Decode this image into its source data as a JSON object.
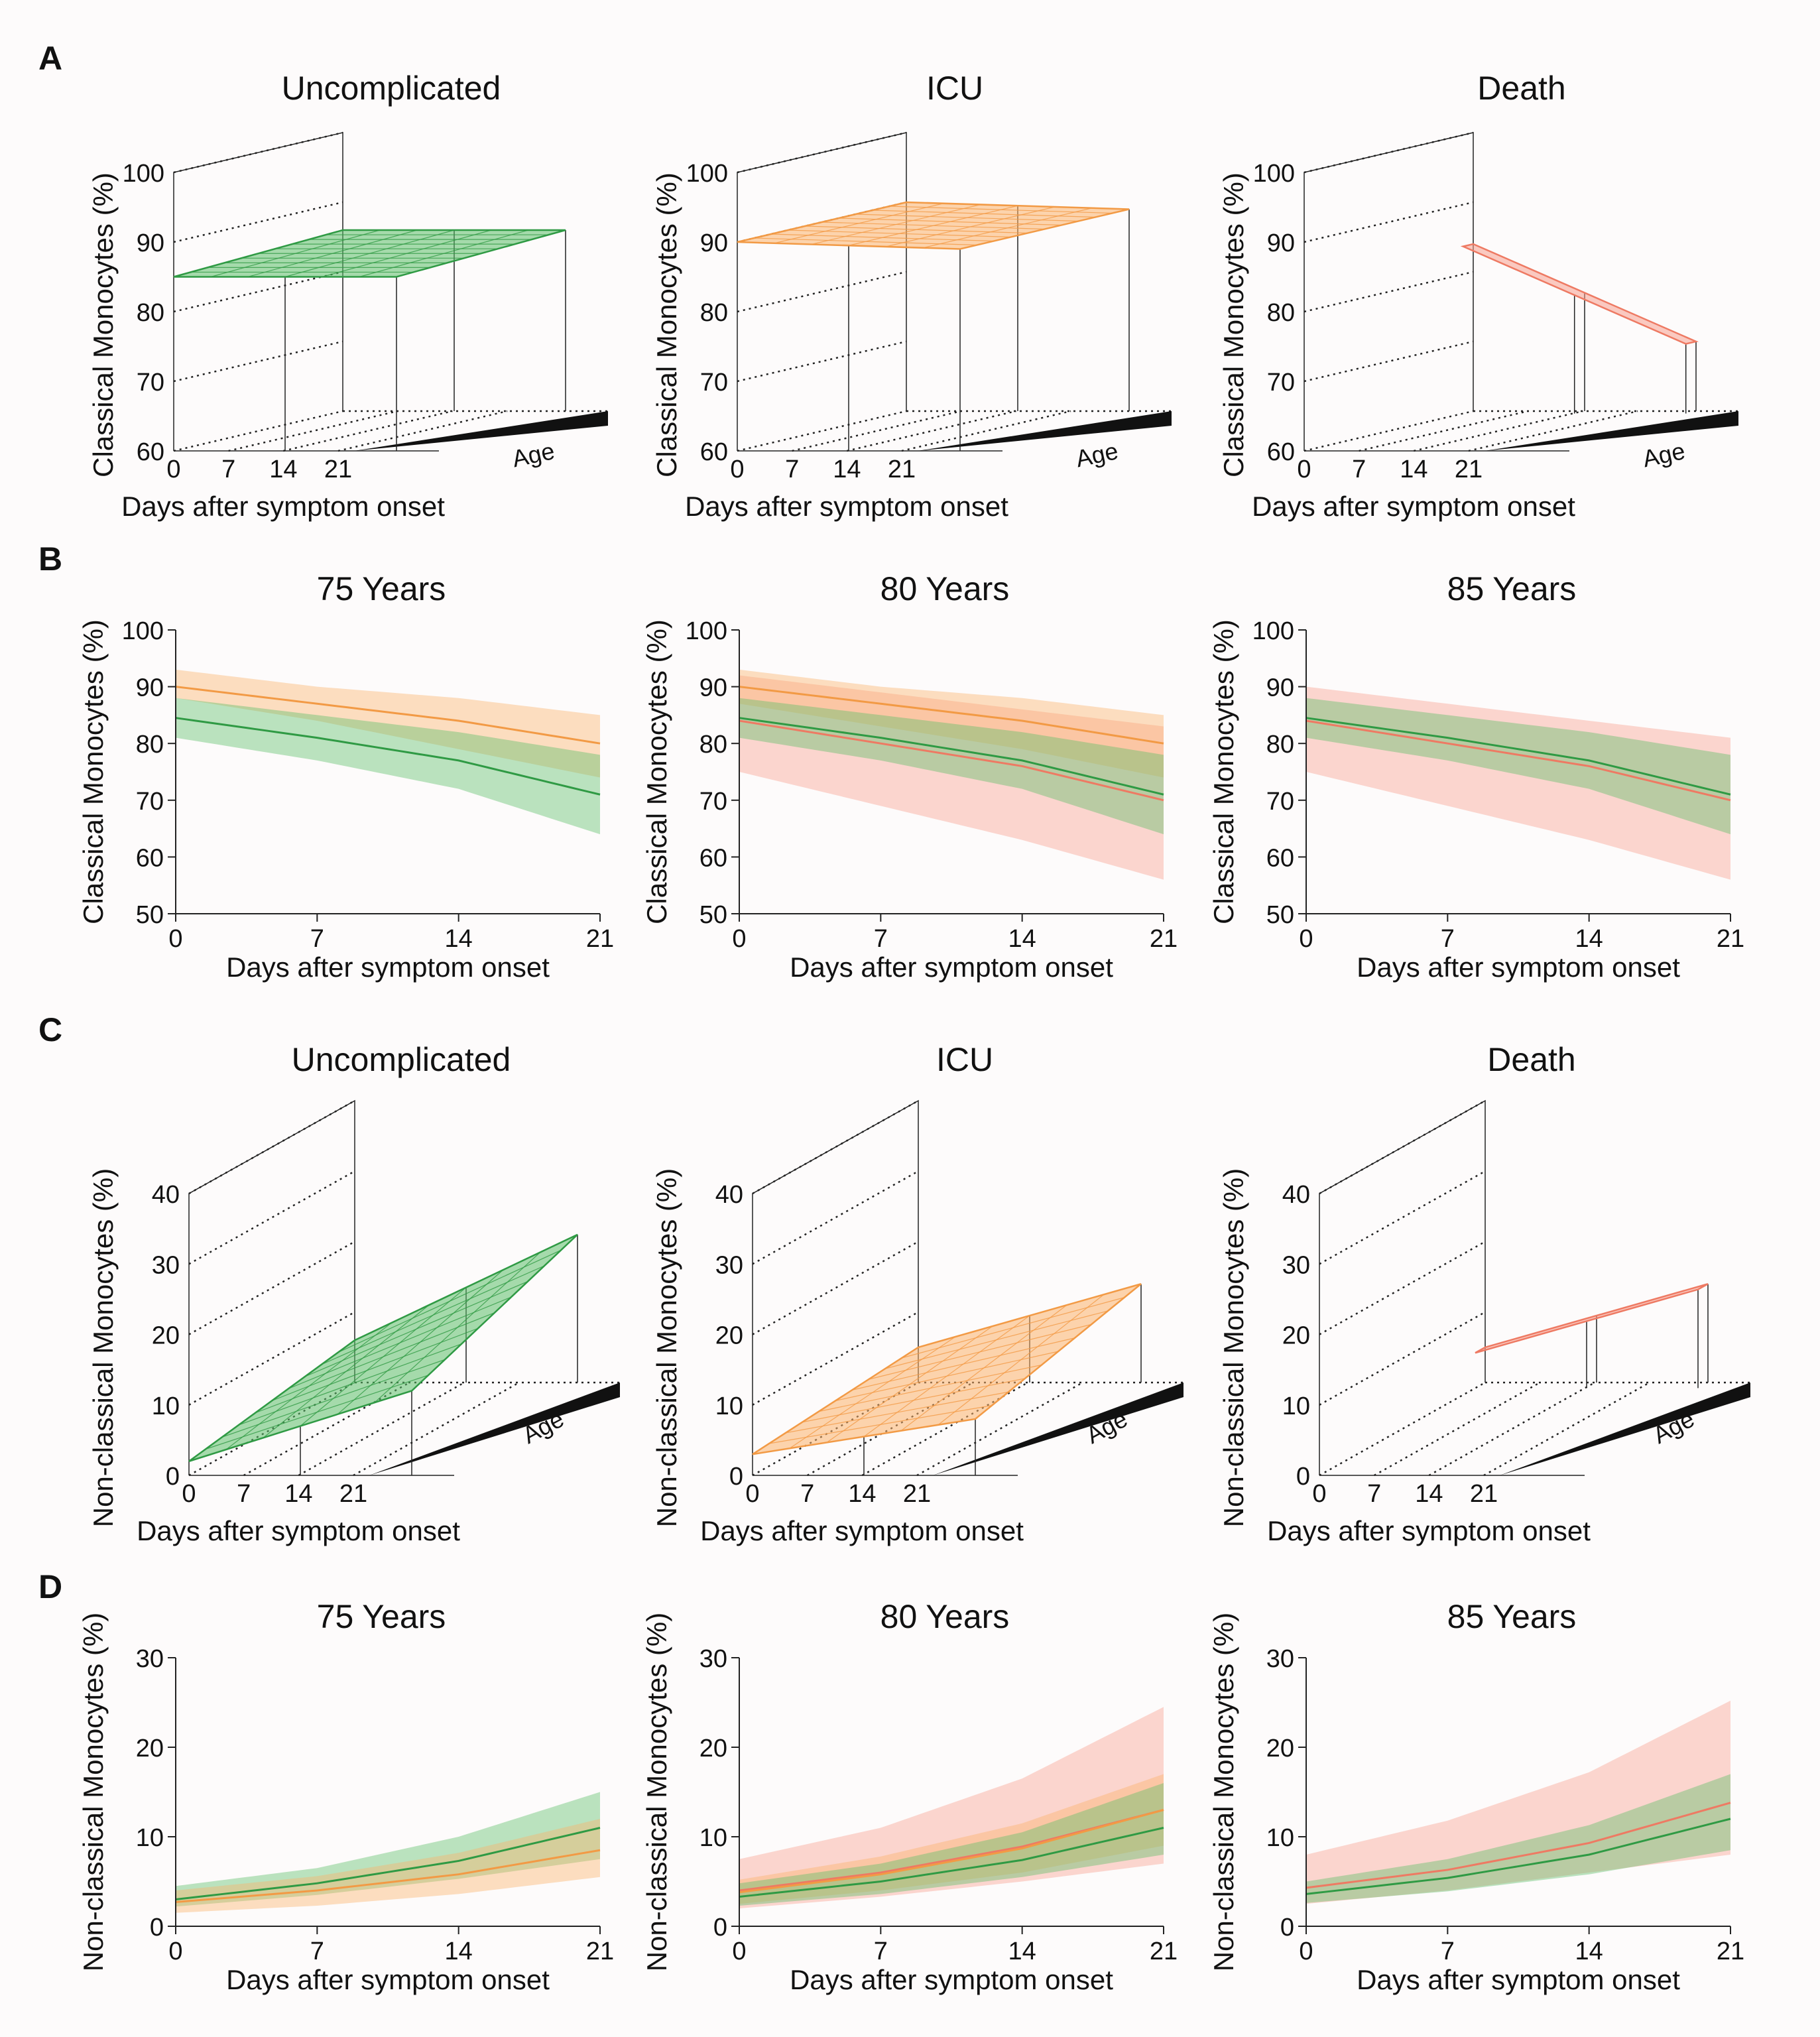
{
  "colors": {
    "uncomplicated": "#2f9a44",
    "uncomplicated_band": "#5cbf6a",
    "icu": "#f29a45",
    "icu_band": "#fbb26b",
    "death": "#ee7a63",
    "death_band": "#f7a08f"
  },
  "panels": [
    {
      "letter": "A"
    },
    {
      "letter": "B"
    },
    {
      "letter": "C"
    },
    {
      "letter": "D"
    }
  ],
  "chart_data": [
    {
      "id": "A1",
      "panel": "A",
      "type": "surface3d",
      "title": "Uncomplicated",
      "xlabel": "Days after symptom onset",
      "ylabel": "Classical Monocytes (%)",
      "zlabel": "Age",
      "xticks": [
        "0",
        "7",
        "14",
        "21"
      ],
      "yticks": [
        "60",
        "70",
        "80",
        "90",
        "100"
      ],
      "ylim": [
        60,
        100
      ],
      "series": [
        {
          "name": "Uncomplicated",
          "color_key": "uncomplicated",
          "back_left": 86,
          "back_right": 86,
          "front_left": 85,
          "front_right": 85
        }
      ]
    },
    {
      "id": "A2",
      "panel": "A",
      "type": "surface3d",
      "title": "ICU",
      "xlabel": "Days after symptom onset",
      "ylabel": "Classical Monocytes (%)",
      "zlabel": "Age",
      "xticks": [
        "0",
        "7",
        "14",
        "21"
      ],
      "yticks": [
        "60",
        "70",
        "80",
        "90",
        "100"
      ],
      "ylim": [
        60,
        100
      ],
      "series": [
        {
          "name": "ICU",
          "color_key": "icu",
          "back_left": 90,
          "back_right": 89,
          "front_left": 90,
          "front_right": 89
        }
      ]
    },
    {
      "id": "A3",
      "panel": "A",
      "type": "surface3d",
      "title": "Death",
      "xlabel": "Days after symptom onset",
      "ylabel": "Classical Monocytes (%)",
      "zlabel": "Age",
      "xticks": [
        "0",
        "7",
        "14",
        "21"
      ],
      "yticks": [
        "60",
        "70",
        "80",
        "90",
        "100"
      ],
      "ylim": [
        60,
        100
      ],
      "series": [
        {
          "name": "Death",
          "color_key": "death",
          "back_left": 84,
          "back_right": 70,
          "front_left": 84,
          "front_right": 70
        }
      ]
    },
    {
      "id": "B1",
      "panel": "B",
      "type": "line",
      "title": "75 Years",
      "xlabel": "Days after symptom onset",
      "ylabel": "Classical Monocytes (%)",
      "xticks": [
        "0",
        "7",
        "14",
        "21"
      ],
      "yticks": [
        "50",
        "60",
        "70",
        "80",
        "90",
        "100"
      ],
      "xlim": [
        0,
        21
      ],
      "ylim": [
        50,
        100
      ],
      "series": [
        {
          "name": "ICU",
          "color_key": "icu",
          "x": [
            0,
            7,
            14,
            21
          ],
          "y": [
            90,
            87,
            84,
            80
          ],
          "lower": [
            88,
            84,
            79,
            74
          ],
          "upper": [
            93,
            90,
            88,
            85
          ]
        },
        {
          "name": "Uncomplicated",
          "color_key": "uncomplicated",
          "x": [
            0,
            7,
            14,
            21
          ],
          "y": [
            84.5,
            81,
            77,
            71
          ],
          "lower": [
            81,
            77,
            72,
            64
          ],
          "upper": [
            88,
            85,
            82,
            78
          ]
        }
      ]
    },
    {
      "id": "B2",
      "panel": "B",
      "type": "line",
      "title": "80 Years",
      "xlabel": "Days after symptom onset",
      "ylabel": "Classical Monocytes (%)",
      "xticks": [
        "0",
        "7",
        "14",
        "21"
      ],
      "yticks": [
        "50",
        "60",
        "70",
        "80",
        "90",
        "100"
      ],
      "xlim": [
        0,
        21
      ],
      "ylim": [
        50,
        100
      ],
      "series": [
        {
          "name": "Death",
          "color_key": "death",
          "x": [
            0,
            7,
            14,
            21
          ],
          "y": [
            84,
            80,
            76,
            70
          ],
          "lower": [
            75,
            69,
            63,
            56
          ],
          "upper": [
            92,
            89,
            86,
            83
          ]
        },
        {
          "name": "ICU",
          "color_key": "icu",
          "x": [
            0,
            7,
            14,
            21
          ],
          "y": [
            90,
            87,
            84,
            80
          ],
          "lower": [
            87,
            83,
            79,
            74
          ],
          "upper": [
            93,
            90,
            88,
            85
          ]
        },
        {
          "name": "Uncomplicated",
          "color_key": "uncomplicated",
          "x": [
            0,
            7,
            14,
            21
          ],
          "y": [
            84.5,
            81,
            77,
            71
          ],
          "lower": [
            81,
            77,
            72,
            64
          ],
          "upper": [
            88,
            85,
            82,
            78
          ]
        }
      ]
    },
    {
      "id": "B3",
      "panel": "B",
      "type": "line",
      "title": "85 Years",
      "xlabel": "Days after symptom onset",
      "ylabel": "Classical Monocytes (%)",
      "xticks": [
        "0",
        "7",
        "14",
        "21"
      ],
      "yticks": [
        "50",
        "60",
        "70",
        "80",
        "90",
        "100"
      ],
      "xlim": [
        0,
        21
      ],
      "ylim": [
        50,
        100
      ],
      "series": [
        {
          "name": "Death",
          "color_key": "death",
          "x": [
            0,
            7,
            14,
            21
          ],
          "y": [
            84,
            80,
            76,
            70
          ],
          "lower": [
            75,
            69,
            63,
            56
          ],
          "upper": [
            90,
            87,
            84,
            81
          ]
        },
        {
          "name": "Uncomplicated",
          "color_key": "uncomplicated",
          "x": [
            0,
            7,
            14,
            21
          ],
          "y": [
            84.5,
            81,
            77,
            71
          ],
          "lower": [
            81,
            77,
            72,
            64
          ],
          "upper": [
            88,
            85,
            82,
            78
          ]
        }
      ]
    },
    {
      "id": "C1",
      "panel": "C",
      "type": "surface3d",
      "title": "Uncomplicated",
      "xlabel": "Days after symptom onset",
      "ylabel": "Non-classical Monocytes (%)",
      "zlabel": "Age",
      "xticks": [
        "0",
        "7",
        "14",
        "21"
      ],
      "yticks": [
        "0",
        "10",
        "20",
        "30",
        "40"
      ],
      "ylim": [
        0,
        40
      ],
      "series": [
        {
          "name": "Uncomplicated",
          "color_key": "uncomplicated",
          "back_left": 6,
          "back_right": 21,
          "front_left": 2,
          "front_right": 12
        }
      ]
    },
    {
      "id": "C2",
      "panel": "C",
      "type": "surface3d",
      "title": "ICU",
      "xlabel": "Days after symptom onset",
      "ylabel": "Non-classical Monocytes (%)",
      "zlabel": "Age",
      "xticks": [
        "0",
        "7",
        "14",
        "21"
      ],
      "yticks": [
        "0",
        "10",
        "20",
        "30",
        "40"
      ],
      "ylim": [
        0,
        40
      ],
      "series": [
        {
          "name": "ICU",
          "color_key": "icu",
          "back_left": 5,
          "back_right": 14,
          "front_left": 3,
          "front_right": 8
        }
      ]
    },
    {
      "id": "C3",
      "panel": "C",
      "type": "surface3d",
      "title": "Death",
      "xlabel": "Days after symptom onset",
      "ylabel": "Non-classical Monocytes (%)",
      "zlabel": "Age",
      "xticks": [
        "0",
        "7",
        "14",
        "21"
      ],
      "yticks": [
        "0",
        "10",
        "20",
        "30",
        "40"
      ],
      "ylim": [
        0,
        40
      ],
      "series": [
        {
          "name": "Death",
          "color_key": "death",
          "back_left": 5,
          "back_right": 14,
          "front_left": 5,
          "front_right": 14
        }
      ]
    },
    {
      "id": "D1",
      "panel": "D",
      "type": "line",
      "title": "75 Years",
      "xlabel": "Days after symptom onset",
      "ylabel": "Non-classical Monocytes (%)",
      "xticks": [
        "0",
        "7",
        "14",
        "21"
      ],
      "yticks": [
        "0",
        "10",
        "20",
        "30"
      ],
      "xlim": [
        0,
        21
      ],
      "ylim": [
        0,
        30
      ],
      "series": [
        {
          "name": "Uncomplicated",
          "color_key": "uncomplicated",
          "x": [
            0,
            7,
            14,
            21
          ],
          "y": [
            3,
            4.8,
            7.3,
            11
          ],
          "lower": [
            2.2,
            3.5,
            5.3,
            7.5
          ],
          "upper": [
            4.5,
            6.5,
            10,
            15
          ]
        },
        {
          "name": "ICU",
          "color_key": "icu",
          "x": [
            0,
            7,
            14,
            21
          ],
          "y": [
            2.7,
            4,
            5.8,
            8.5
          ],
          "lower": [
            1.5,
            2.3,
            3.6,
            5.5
          ],
          "upper": [
            4,
            5.6,
            8.2,
            12
          ]
        }
      ]
    },
    {
      "id": "D2",
      "panel": "D",
      "type": "line",
      "title": "80 Years",
      "xlabel": "Days after symptom onset",
      "ylabel": "Non-classical Monocytes (%)",
      "xticks": [
        "0",
        "7",
        "14",
        "21"
      ],
      "yticks": [
        "0",
        "10",
        "20",
        "30"
      ],
      "xlim": [
        0,
        21
      ],
      "ylim": [
        0,
        30
      ],
      "series": [
        {
          "name": "Death",
          "color_key": "death",
          "x": [
            0,
            7,
            14,
            21
          ],
          "y": [
            4,
            6,
            8.9,
            13
          ],
          "lower": [
            2,
            3.3,
            5,
            7
          ],
          "upper": [
            7.5,
            11,
            16.5,
            24.5
          ]
        },
        {
          "name": "ICU",
          "color_key": "icu",
          "x": [
            0,
            7,
            14,
            21
          ],
          "y": [
            3.8,
            5.8,
            8.7,
            13
          ],
          "lower": [
            2.5,
            4,
            6,
            9
          ],
          "upper": [
            5.2,
            7.8,
            11.5,
            17
          ]
        },
        {
          "name": "Uncomplicated",
          "color_key": "uncomplicated",
          "x": [
            0,
            7,
            14,
            21
          ],
          "y": [
            3.3,
            5,
            7.4,
            11
          ],
          "lower": [
            2.3,
            3.6,
            5.5,
            8
          ],
          "upper": [
            4.8,
            7,
            10.5,
            16
          ]
        }
      ]
    },
    {
      "id": "D3",
      "panel": "D",
      "type": "line",
      "title": "85 Years",
      "xlabel": "Days after symptom onset",
      "ylabel": "Non-classical Monocytes (%)",
      "xticks": [
        "0",
        "7",
        "14",
        "21"
      ],
      "yticks": [
        "0",
        "10",
        "20",
        "30"
      ],
      "xlim": [
        0,
        21
      ],
      "ylim": [
        0,
        30
      ],
      "series": [
        {
          "name": "Death",
          "color_key": "death",
          "x": [
            0,
            7,
            14,
            21
          ],
          "y": [
            4.3,
            6.3,
            9.3,
            13.8
          ],
          "lower": [
            2.5,
            4,
            6,
            8
          ],
          "upper": [
            8,
            11.8,
            17.2,
            25.2
          ]
        },
        {
          "name": "Uncomplicated",
          "color_key": "uncomplicated",
          "x": [
            0,
            7,
            14,
            21
          ],
          "y": [
            3.6,
            5.4,
            8,
            12
          ],
          "lower": [
            2.6,
            3.9,
            5.8,
            8.5
          ],
          "upper": [
            5,
            7.5,
            11.3,
            17
          ]
        }
      ]
    }
  ]
}
